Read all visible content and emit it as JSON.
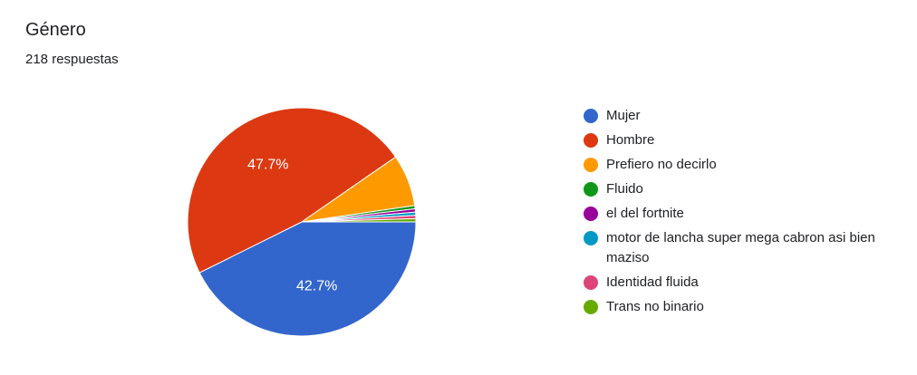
{
  "header": {
    "title": "Género",
    "subtitle": "218 respuestas"
  },
  "chart_data": {
    "type": "pie",
    "title": "Género",
    "subtitle": "218 respuestas",
    "legend_position": "right",
    "slices": [
      {
        "label": "Mujer",
        "value": 93,
        "percent_label": "42.7%",
        "color": "#3366cc"
      },
      {
        "label": "Hombre",
        "value": 104,
        "percent_label": "47.7%",
        "color": "#dc3912"
      },
      {
        "label": "Prefiero no decirlo",
        "value": 16,
        "percent_label": "",
        "color": "#ff9900"
      },
      {
        "label": "Fluido",
        "value": 1,
        "percent_label": "",
        "color": "#109618"
      },
      {
        "label": "el del fortnite",
        "value": 1,
        "percent_label": "",
        "color": "#990099"
      },
      {
        "label": "motor de lancha super mega cabron asi bien maziso",
        "value": 1,
        "percent_label": "",
        "color": "#0099c6"
      },
      {
        "label": "Identidad fluida",
        "value": 1,
        "percent_label": "",
        "color": "#dd4477"
      },
      {
        "label": "Trans no binario",
        "value": 1,
        "percent_label": "",
        "color": "#66aa00"
      }
    ]
  }
}
